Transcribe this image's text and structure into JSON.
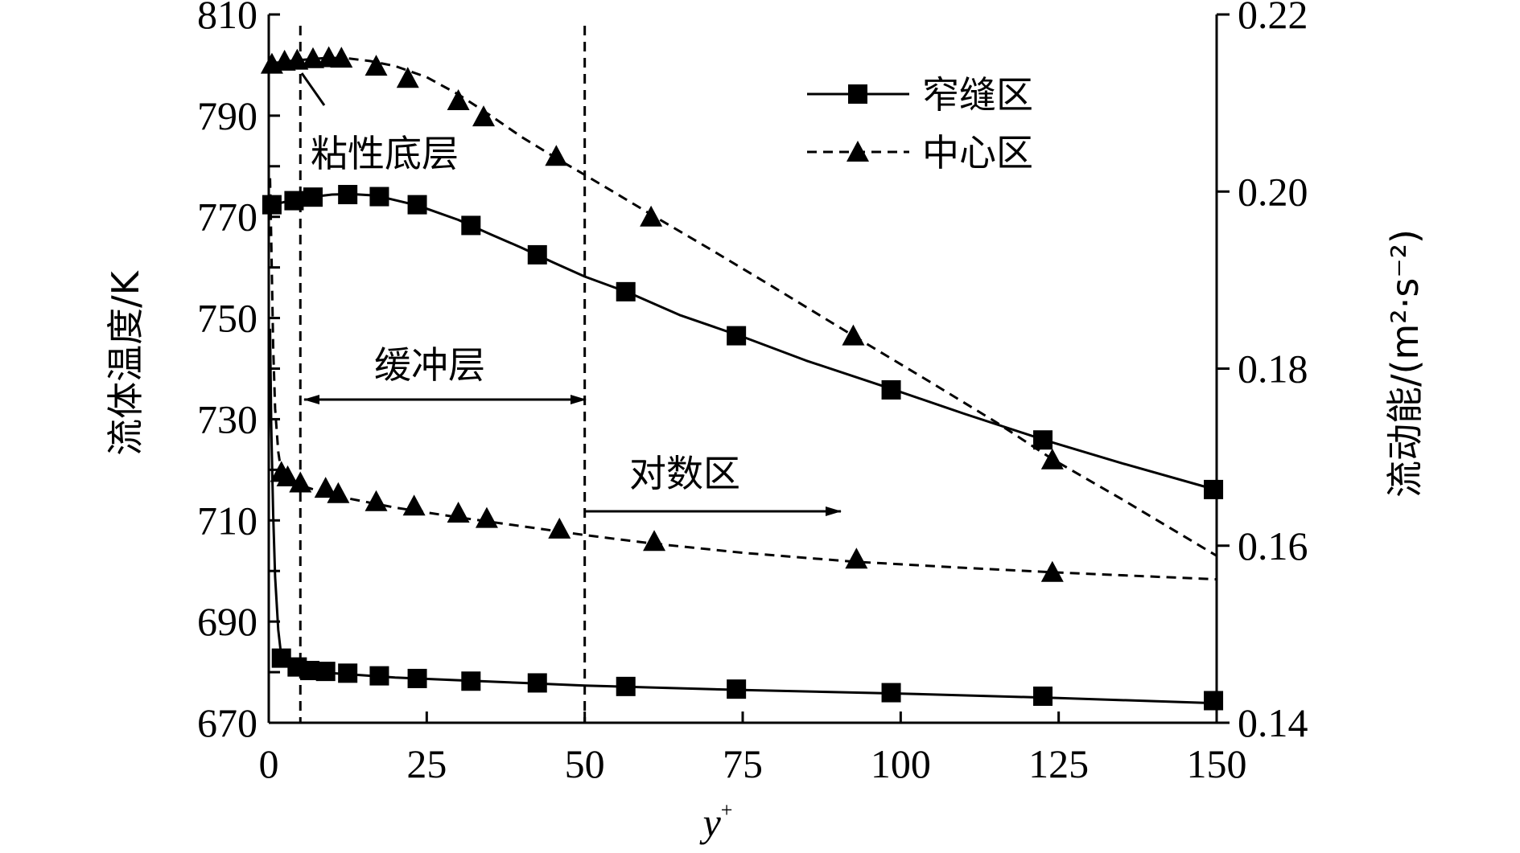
{
  "chart_data": {
    "type": "line",
    "x_label": "y",
    "x_label_sup": "+",
    "left_axis_label": "流体温度/K",
    "right_axis_label": "流动能/(m²·s⁻²)",
    "x_range": [
      0,
      150
    ],
    "left_range": [
      670,
      810
    ],
    "right_range": [
      0.14,
      0.22
    ],
    "x_ticks": [
      "0",
      "25",
      "50",
      "75",
      "100",
      "125",
      "150"
    ],
    "left_ticks": [
      "670",
      "690",
      "710",
      "730",
      "750",
      "770",
      "790",
      "810"
    ],
    "right_ticks": [
      "0.14",
      "0.16",
      "0.18",
      "0.20",
      "0.22"
    ],
    "legend": [
      {
        "label": "窄缝区",
        "style": "solid",
        "marker": "square"
      },
      {
        "label": "中心区",
        "style": "dashed",
        "marker": "triangle"
      }
    ],
    "series": [
      {
        "name": "窄缝区",
        "axis": "left",
        "style": "solid",
        "marker": "square",
        "curve": [
          [
            0,
            772.5
          ],
          [
            1,
            772.6
          ],
          [
            2,
            772.8
          ],
          [
            4,
            773.3
          ],
          [
            6,
            773.8
          ],
          [
            8,
            774.1
          ],
          [
            10,
            774.4
          ],
          [
            13,
            774.5
          ],
          [
            17,
            774.2
          ],
          [
            22,
            772.7
          ],
          [
            25,
            771.6
          ],
          [
            30,
            769.4
          ],
          [
            35,
            766.6
          ],
          [
            40,
            763.9
          ],
          [
            45,
            761
          ],
          [
            50,
            758.2
          ],
          [
            57,
            755
          ],
          [
            65,
            750.6
          ],
          [
            75,
            746.3
          ],
          [
            85,
            741.6
          ],
          [
            99,
            735.8
          ],
          [
            110,
            731.1
          ],
          [
            123,
            725.8
          ],
          [
            135,
            721.3
          ],
          [
            150,
            716
          ]
        ],
        "points": [
          [
            0.5,
            772.4
          ],
          [
            4,
            773.2
          ],
          [
            7,
            773.9
          ],
          [
            12.5,
            774.4
          ],
          [
            17.5,
            774
          ],
          [
            23.5,
            772.4
          ],
          [
            32,
            768.3
          ],
          [
            42.5,
            762.5
          ],
          [
            56.5,
            755.2
          ],
          [
            74,
            746.5
          ],
          [
            98.5,
            735.8
          ],
          [
            122.5,
            725.9
          ],
          [
            149.5,
            716.1
          ]
        ]
      },
      {
        "name": "中心区",
        "axis": "left",
        "style": "dashed",
        "marker": "triangle",
        "curve": [
          [
            0,
            800.3
          ],
          [
            2,
            800.6
          ],
          [
            4,
            800.9
          ],
          [
            6,
            801.1
          ],
          [
            9,
            801.4
          ],
          [
            12,
            801.4
          ],
          [
            16,
            800.8
          ],
          [
            20,
            799.8
          ],
          [
            25,
            797.6
          ],
          [
            30,
            794.2
          ],
          [
            35,
            790.1
          ],
          [
            40,
            785.8
          ],
          [
            46,
            781.2
          ],
          [
            50,
            778.3
          ],
          [
            55,
            774.6
          ],
          [
            61,
            770.1
          ],
          [
            70,
            763.5
          ],
          [
            80,
            756
          ],
          [
            92.5,
            746.5
          ],
          [
            105,
            737.1
          ],
          [
            115,
            729.5
          ],
          [
            124,
            722.1
          ],
          [
            135,
            714.2
          ],
          [
            150,
            703
          ]
        ],
        "points": [
          [
            0.5,
            800.2
          ],
          [
            2.5,
            800.8
          ],
          [
            4.5,
            801
          ],
          [
            7,
            801.3
          ],
          [
            9.5,
            801.5
          ],
          [
            11.5,
            801.4
          ],
          [
            17,
            799.8
          ],
          [
            22,
            797.4
          ],
          [
            30,
            793
          ],
          [
            34,
            789.8
          ],
          [
            45.5,
            782
          ],
          [
            60.5,
            770
          ],
          [
            92.5,
            746.5
          ],
          [
            124,
            722
          ]
        ]
      },
      {
        "name": "窄缝区",
        "axis": "right",
        "style": "solid",
        "marker": "square",
        "curve": [
          [
            0.2,
            0.1845
          ],
          [
            0.4,
            0.1735
          ],
          [
            0.7,
            0.1635
          ],
          [
            1,
            0.1565
          ],
          [
            1.5,
            0.1505
          ],
          [
            2,
            0.1474
          ],
          [
            3,
            0.1464
          ],
          [
            4,
            0.1461
          ],
          [
            6,
            0.1459
          ],
          [
            10,
            0.1456
          ],
          [
            20,
            0.1451
          ],
          [
            30,
            0.1448
          ],
          [
            40,
            0.1445
          ],
          [
            50,
            0.1442
          ],
          [
            60,
            0.144
          ],
          [
            75,
            0.1437
          ],
          [
            100,
            0.1433
          ],
          [
            125,
            0.1428
          ],
          [
            150,
            0.1422
          ]
        ],
        "points": [
          [
            2,
            0.1473
          ],
          [
            4.5,
            0.1463
          ],
          [
            6.5,
            0.1459
          ],
          [
            9,
            0.1458
          ],
          [
            12.5,
            0.1456
          ],
          [
            17.5,
            0.1453
          ],
          [
            23.5,
            0.145
          ],
          [
            32,
            0.1447
          ],
          [
            42.5,
            0.1445
          ],
          [
            56.5,
            0.1441
          ],
          [
            74,
            0.1438
          ],
          [
            98.5,
            0.1434
          ],
          [
            122.5,
            0.143
          ],
          [
            149.5,
            0.1425
          ]
        ]
      },
      {
        "name": "中心区",
        "axis": "right",
        "style": "dashed",
        "marker": "triangle",
        "curve": [
          [
            0.2,
            0.2015
          ],
          [
            0.4,
            0.1945
          ],
          [
            0.7,
            0.1825
          ],
          [
            1,
            0.1755
          ],
          [
            1.5,
            0.1706
          ],
          [
            2,
            0.1683
          ],
          [
            3,
            0.1675
          ],
          [
            4,
            0.167
          ],
          [
            6,
            0.1666
          ],
          [
            10,
            0.1657
          ],
          [
            15,
            0.165
          ],
          [
            20,
            0.1643
          ],
          [
            30,
            0.1632
          ],
          [
            40,
            0.1622
          ],
          [
            50,
            0.1612
          ],
          [
            60,
            0.1603
          ],
          [
            75,
            0.1592
          ],
          [
            92.5,
            0.1582
          ],
          [
            110,
            0.1575
          ],
          [
            124,
            0.157
          ],
          [
            150,
            0.1562
          ]
        ],
        "points": [
          [
            2,
            0.1683
          ],
          [
            3,
            0.1678
          ],
          [
            5,
            0.1671
          ],
          [
            9,
            0.1665
          ],
          [
            11,
            0.1659
          ],
          [
            17,
            0.165
          ],
          [
            23,
            0.1645
          ],
          [
            30,
            0.1637
          ],
          [
            34.5,
            0.1631
          ],
          [
            46,
            0.1619
          ],
          [
            61,
            0.1605
          ],
          [
            93,
            0.1585
          ],
          [
            124,
            0.157
          ]
        ]
      }
    ],
    "annotations": {
      "viscous": "粘性底层",
      "buffer": "缓冲层",
      "log": "对数区"
    },
    "region_boundaries_x": [
      5,
      50
    ]
  }
}
